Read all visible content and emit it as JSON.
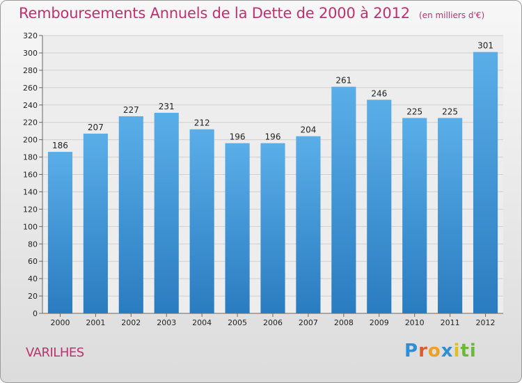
{
  "chart_data": {
    "type": "bar",
    "title": "Remboursements Annuels de la Dette de 2000 à 2012",
    "subtitle": "(en milliers d'€)",
    "categories": [
      "2000",
      "2001",
      "2002",
      "2003",
      "2004",
      "2005",
      "2006",
      "2007",
      "2008",
      "2009",
      "2010",
      "2011",
      "2012"
    ],
    "values": [
      186,
      207,
      227,
      231,
      212,
      196,
      196,
      204,
      261,
      246,
      225,
      225,
      301
    ],
    "ylim": [
      0,
      320
    ],
    "yticks": [
      0,
      20,
      40,
      60,
      80,
      100,
      120,
      140,
      160,
      180,
      200,
      220,
      240,
      260,
      280,
      300,
      320
    ],
    "grid": true,
    "bar_color_top": "#5aaee8",
    "bar_color_bottom": "#2a7cc0"
  },
  "commune": "VARILHES",
  "logo": {
    "letters": [
      "P",
      "r",
      "o",
      "x",
      "i",
      "t",
      "i"
    ],
    "colors": [
      "#2f8fd6",
      "#e05a2a",
      "#f0a020",
      "#2f8fd6",
      "#e0c020",
      "#6cb83a",
      "#6cb83a"
    ]
  },
  "colors": {
    "title": "#c0306e",
    "accent": "#c0306e"
  }
}
